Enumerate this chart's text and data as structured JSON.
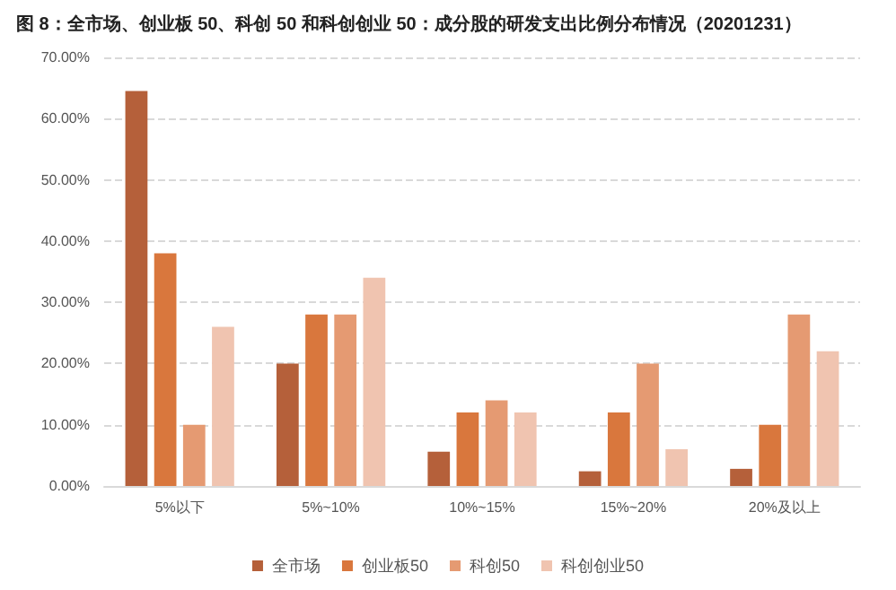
{
  "chart_data": {
    "type": "bar",
    "title": "图 8：全市场、创业板 50、科创 50 和科创创业 50：成分股的研发支出比例分布情况（20201231）",
    "categories": [
      "5%以下",
      "5%~10%",
      "10%~15%",
      "15%~20%",
      "20%及以上"
    ],
    "series": [
      {
        "name": "全市场",
        "color": "#b5603a",
        "values": [
          64.5,
          20,
          5.6,
          2.4,
          2.8
        ]
      },
      {
        "name": "创业板50",
        "color": "#d9773d",
        "values": [
          38,
          28,
          12,
          12,
          10
        ]
      },
      {
        "name": "科创50",
        "color": "#e59a72",
        "values": [
          10,
          28,
          14,
          20,
          28
        ]
      },
      {
        "name": "科创创业50",
        "color": "#f0c4b0",
        "values": [
          26,
          34,
          12,
          6,
          22
        ]
      }
    ],
    "ylim": [
      0,
      70
    ],
    "yticks": [
      {
        "value": 0,
        "label": "0.00%"
      },
      {
        "value": 10,
        "label": "10.00%"
      },
      {
        "value": 20,
        "label": "20.00%"
      },
      {
        "value": 30,
        "label": "30.00%"
      },
      {
        "value": 40,
        "label": "40.00%"
      },
      {
        "value": 50,
        "label": "50.00%"
      },
      {
        "value": 60,
        "label": "60.00%"
      },
      {
        "value": 70,
        "label": "70.00%"
      }
    ],
    "grid": "y",
    "legend": "bottom"
  }
}
